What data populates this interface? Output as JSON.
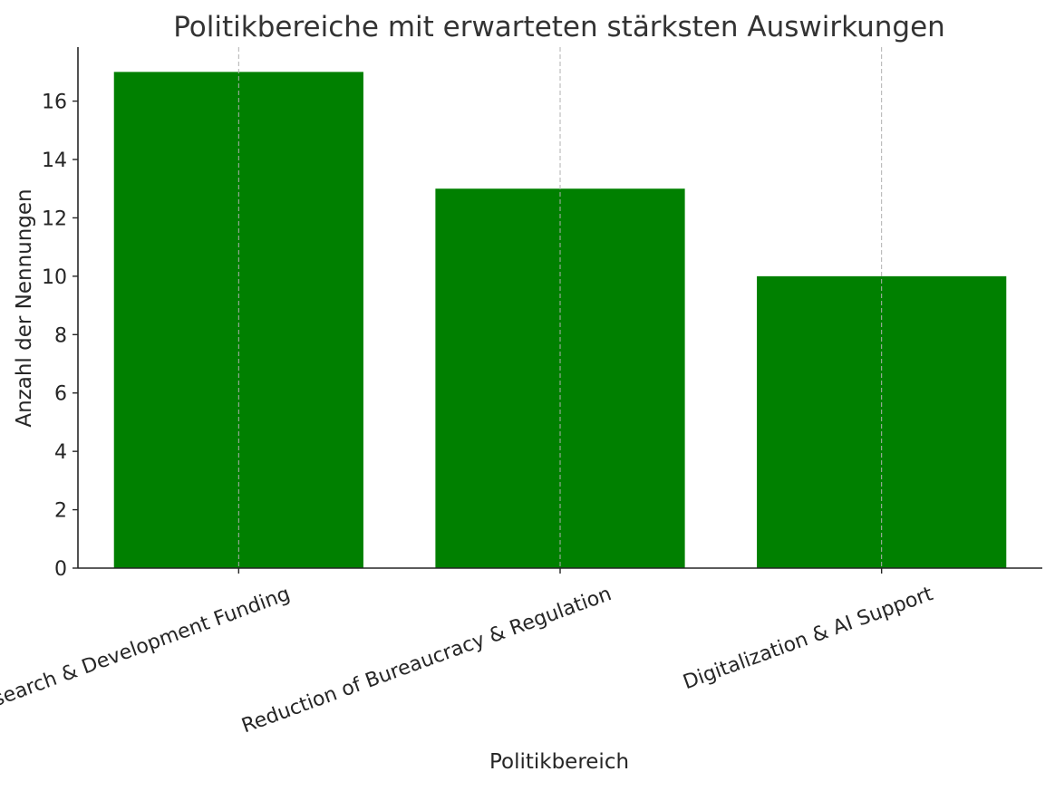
{
  "chart_data": {
    "type": "bar",
    "title": "Politikbereiche mit erwarteten stärksten Auswirkungen",
    "xlabel": "Politikbereich",
    "ylabel": "Anzahl der Nennungen",
    "categories": [
      "Research & Development Funding",
      "Reduction of Bureaucracy & Regulation",
      "Digitalization & AI Support"
    ],
    "values": [
      17,
      13,
      10
    ],
    "ylim": [
      0,
      17.85
    ],
    "yticks": [
      0,
      2,
      4,
      6,
      8,
      10,
      12,
      14,
      16
    ],
    "bar_color": "#008000",
    "grid": "vertical dashed at category positions",
    "x_tick_rotation_deg": -20
  }
}
